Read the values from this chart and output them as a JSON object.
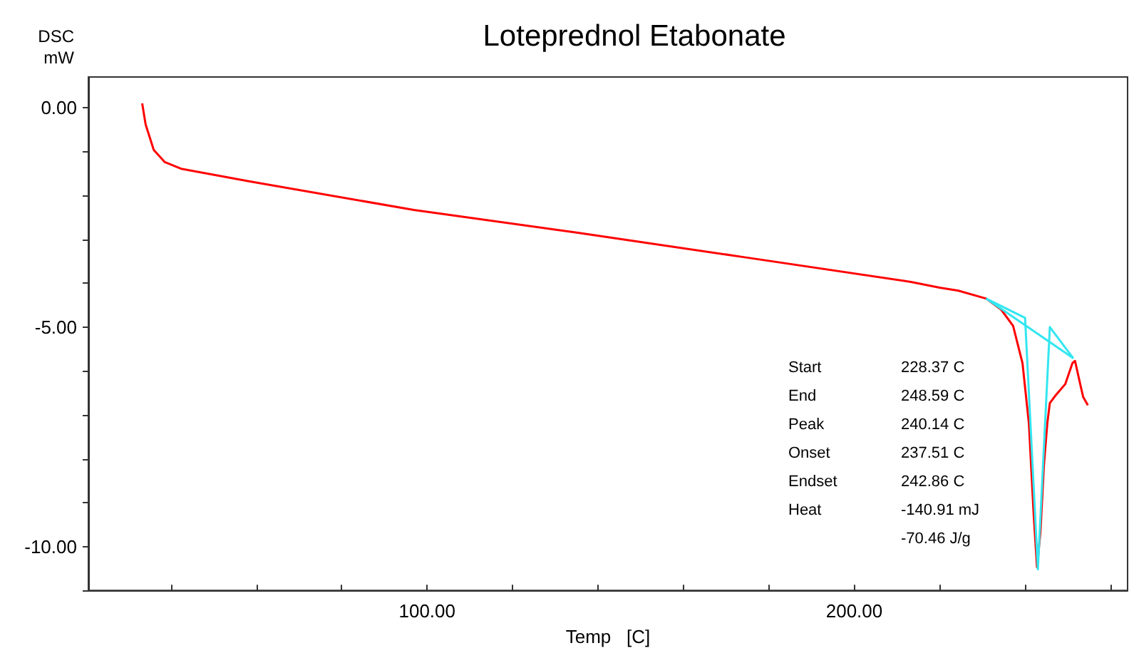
{
  "chart_data": {
    "type": "line",
    "title": "Loteprednol Etabonate",
    "xlabel": "Temp   [C]",
    "ylabel": "DSC\nmW",
    "xlim": [
      20.7,
      264
    ],
    "ylim": [
      -11.0,
      0.7
    ],
    "xticks": [
      {
        "value": 40,
        "label": null
      },
      {
        "value": 60,
        "label": null
      },
      {
        "value": 80,
        "label": null
      },
      {
        "value": 100,
        "label": "100.00"
      },
      {
        "value": 120,
        "label": null
      },
      {
        "value": 140,
        "label": null
      },
      {
        "value": 160,
        "label": null
      },
      {
        "value": 180,
        "label": null
      },
      {
        "value": 200,
        "label": "200.00"
      },
      {
        "value": 220,
        "label": null
      },
      {
        "value": 240,
        "label": null
      },
      {
        "value": 260,
        "label": null
      }
    ],
    "yticks": [
      {
        "value": 0,
        "label": "0.00"
      },
      {
        "value": -1,
        "label": null
      },
      {
        "value": -2,
        "label": null
      },
      {
        "value": -3,
        "label": null
      },
      {
        "value": -4,
        "label": null
      },
      {
        "value": -5,
        "label": "-5.00"
      },
      {
        "value": -6,
        "label": null
      },
      {
        "value": -7,
        "label": null
      },
      {
        "value": -8,
        "label": null
      },
      {
        "value": -9,
        "label": null
      },
      {
        "value": -10,
        "label": "-10.00"
      },
      {
        "value": -11,
        "label": null
      }
    ],
    "grid": false,
    "marker": "none",
    "line_style": "solid",
    "series": [
      {
        "color": "#ff0000",
        "x": [
          33.3,
          34.1,
          36,
          38.6,
          42.4,
          58.5,
          96.9,
          135.3,
          173.8,
          213.3,
          220,
          224.4,
          230.9,
          234.4,
          237.2,
          239.4,
          240.9,
          242,
          242.8,
          243.6,
          244.4,
          245.2,
          245.8,
          247.2,
          249.4,
          251.1,
          251.7,
          252.8,
          253.6,
          254.7
        ],
        "values": [
          0.1,
          -0.38,
          -0.96,
          -1.24,
          -1.39,
          -1.68,
          -2.33,
          -2.85,
          -3.4,
          -3.97,
          -4.1,
          -4.17,
          -4.35,
          -4.6,
          -4.97,
          -5.82,
          -7.2,
          -9.24,
          -10.47,
          -9.67,
          -8.17,
          -7.2,
          -6.73,
          -6.55,
          -6.3,
          -5.82,
          -5.77,
          -6.25,
          -6.59,
          -6.78
        ]
      },
      {
        "color": "#33e6f0",
        "x": [
          230.9,
          240,
          243,
          245.8,
          251.3
        ],
        "values": [
          -4.35,
          -4.79,
          -10.52,
          -5.0,
          -5.71
        ]
      },
      {
        "color": "#33e6f0",
        "x": [
          230.9,
          251.3
        ],
        "values": [
          -4.35,
          -5.71
        ]
      }
    ],
    "annotations": [
      "Start",
      "228.37 C",
      "End",
      "248.59 C",
      "Peak",
      "240.14 C",
      "Onset",
      "237.51 C",
      "Endset",
      "242.86 C",
      "Heat",
      "-140.91 mJ\n-70.46 J/g"
    ]
  }
}
